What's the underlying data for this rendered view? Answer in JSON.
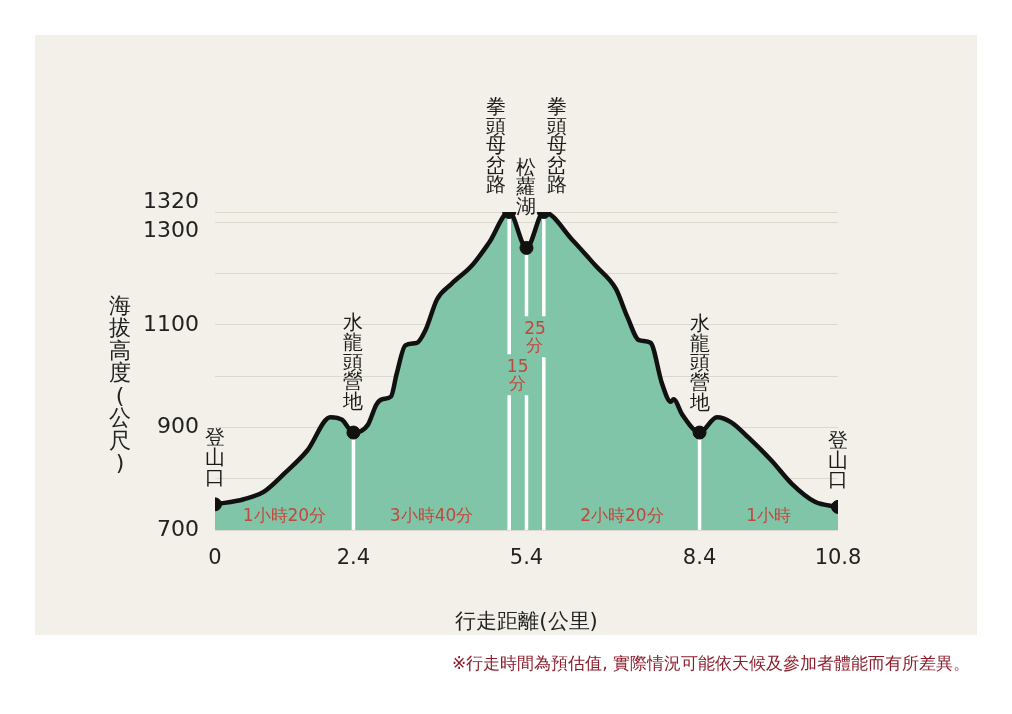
{
  "chart_data": {
    "type": "area",
    "xlabel": "行走距離(公里)",
    "ylabel": "海拔高度(公尺)",
    "xlim": [
      0,
      10.8
    ],
    "xticks": [
      0,
      2.4,
      5.4,
      8.4,
      10.8
    ],
    "ylim": [
      700,
      1320
    ],
    "yticks": [
      700,
      {
        "value": 800,
        "label": null
      },
      900,
      {
        "value": 1000,
        "label": null
      },
      1100,
      {
        "value": 1200,
        "label": null
      },
      1300,
      1320
    ],
    "grid": "y",
    "series": [
      {
        "type": "area",
        "color": "#80c5a8",
        "x": [
          0,
          0.5,
          0.85,
          1.2,
          1.6,
          2.0,
          2.2,
          2.4,
          2.65,
          2.8,
          2.9,
          3.05,
          3.15,
          3.3,
          3.5,
          3.65,
          3.85,
          4.1,
          4.45,
          4.75,
          5.1,
          5.4,
          5.7,
          6.2,
          6.6,
          6.95,
          7.15,
          7.35,
          7.55,
          7.75,
          7.9,
          7.95,
          8.1,
          8.4,
          8.7,
          8.95,
          9.25,
          9.65,
          10.0,
          10.4,
          10.8
        ],
        "values": [
          750,
          760,
          775,
          810,
          855,
          920,
          915,
          890,
          905,
          945,
          955,
          960,
          1005,
          1060,
          1065,
          1090,
          1150,
          1180,
          1215,
          1260,
          1320,
          1250,
          1320,
          1265,
          1215,
          1170,
          1115,
          1070,
          1065,
          985,
          950,
          955,
          925,
          890,
          920,
          910,
          880,
          835,
          790,
          755,
          745
        ]
      },
      {
        "type": "scatter",
        "color": "#111111",
        "marker": "circle",
        "x": [
          0,
          2.4,
          5.1,
          5.4,
          5.7,
          8.4,
          10.8
        ],
        "values": [
          750,
          890,
          1320,
          1250,
          1320,
          890,
          745
        ]
      }
    ],
    "ref_lines": [
      {
        "axis": "x",
        "value": 2.4,
        "color": "#ffffff"
      },
      {
        "axis": "x",
        "value": 5.1,
        "color": "#ffffff"
      },
      {
        "axis": "x",
        "value": 5.4,
        "color": "#ffffff"
      },
      {
        "axis": "x",
        "value": 5.7,
        "color": "#ffffff"
      },
      {
        "axis": "x",
        "value": 8.4,
        "color": "#ffffff"
      }
    ],
    "annotations": [
      {
        "text": "登山口",
        "x": 0,
        "y": 750
      },
      {
        "text": "水龍頭營地",
        "x": 2.4,
        "y": 890
      },
      {
        "text": "拳頭母岔路",
        "x": 5.1,
        "y": 1320
      },
      {
        "text": "松蘿湖",
        "x": 5.4,
        "y": 1250
      },
      {
        "text": "拳頭母岔路",
        "x": 5.7,
        "y": 1320
      },
      {
        "text": "水龍頭營地",
        "x": 8.4,
        "y": 890
      },
      {
        "text": "登山口",
        "x": 10.8,
        "y": 745
      },
      "1小時20分",
      "3小時40分",
      "15分",
      "25分",
      "2小時20分",
      "1小時",
      "※行走時間為預估值, 實際情況可能依天候及參加者體能而有所差異。"
    ]
  }
}
